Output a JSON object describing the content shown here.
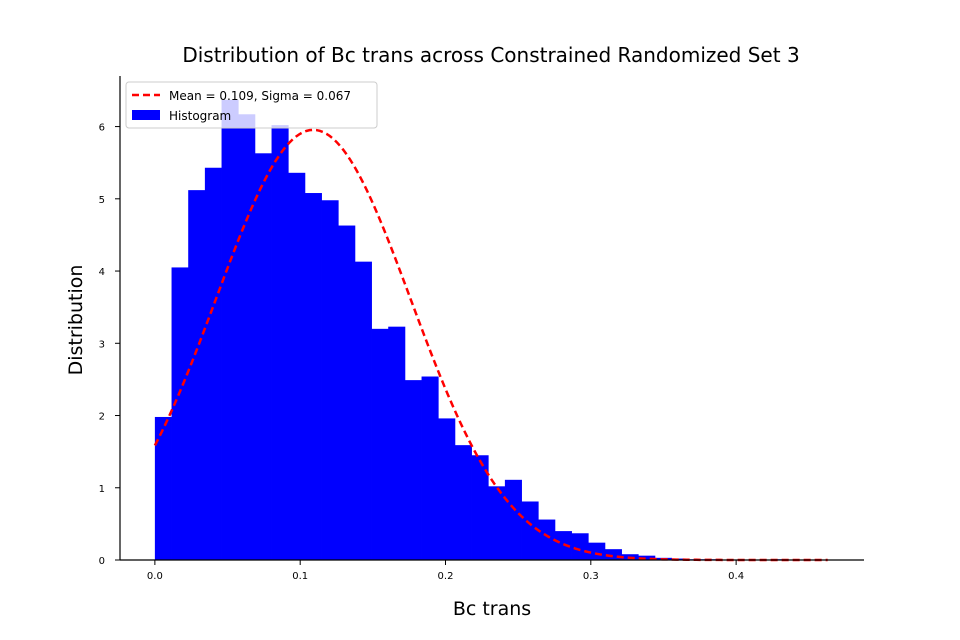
{
  "chart_data": {
    "type": "bar",
    "title": "Distribution of Bc trans across Constrained Randomized Set 3",
    "xlabel": "Bc trans",
    "ylabel": "Distribution",
    "xlim": [
      -0.024,
      0.488
    ],
    "ylim": [
      0,
      6.7
    ],
    "xticks": [
      0.0,
      0.1,
      0.2,
      0.3,
      0.4
    ],
    "xtick_labels": [
      "0.0",
      "0.1",
      "0.2",
      "0.3",
      "0.4"
    ],
    "yticks": [
      0,
      1,
      2,
      3,
      4,
      5,
      6
    ],
    "ytick_labels": [
      "0",
      "1",
      "2",
      "3",
      "4",
      "5",
      "6"
    ],
    "grid": false,
    "legend_position": "top-left",
    "bin_start": 0.0,
    "bin_width": 0.01147,
    "bin_values": [
      1.98,
      4.05,
      5.12,
      5.43,
      6.37,
      6.17,
      5.63,
      6.02,
      5.36,
      5.08,
      4.98,
      4.63,
      4.13,
      3.2,
      3.23,
      2.49,
      2.54,
      1.96,
      1.59,
      1.45,
      1.02,
      1.11,
      0.81,
      0.56,
      0.4,
      0.37,
      0.24,
      0.15,
      0.08,
      0.06,
      0.03,
      0.02,
      0.01,
      0.01,
      0.0,
      0.0,
      0.0,
      0.01,
      0.0,
      0.0
    ],
    "series": [
      {
        "name": "Mean = 0.109, Sigma = 0.067",
        "kind": "line",
        "style": "dashed",
        "color": "#ff0000",
        "mean": 0.109,
        "sigma": 0.067,
        "x_range": [
          0.0,
          0.463
        ]
      },
      {
        "name": "Histogram",
        "kind": "bar",
        "color": "#0000ff"
      }
    ]
  }
}
